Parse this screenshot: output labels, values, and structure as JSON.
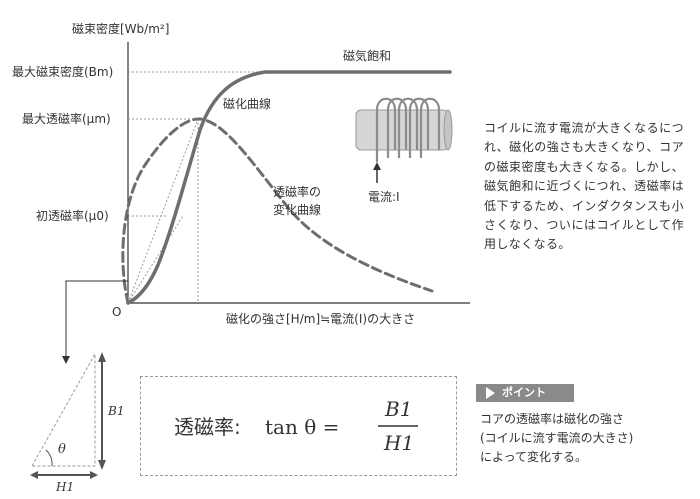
{
  "axes": {
    "y_label": "磁束密度[Wb/m²]",
    "x_label": "磁化の強さ[H/m]≒電流(I)の大きさ",
    "origin": "O"
  },
  "y_markers": {
    "bm": "最大磁束密度(Bm)",
    "mu_m": "最大透磁率(μm)",
    "mu_0": "初透磁率(μ0)"
  },
  "curve_labels": {
    "saturation": "磁気飽和",
    "magnetization": "磁化曲線",
    "permeability_line1": "透磁率の",
    "permeability_line2": "変化曲線"
  },
  "coil": {
    "current_label": "電流:I"
  },
  "triangle": {
    "theta": "θ",
    "b1": "B1",
    "h1": "H1"
  },
  "formula": {
    "lhs": "透磁率:",
    "tan": "tan θ =",
    "numerator": "B1",
    "denominator": "H1"
  },
  "description": "コイルに流す電流が大きくなるにつれ、磁化の強さも大きくなり、コアの磁束密度も大きくなる。しかし、磁気飽和に近づくにつれ、透磁率は低下するため、インダクタンスも小さくなり、ついにはコイルとして作用しなくなる。",
  "point": {
    "badge": "ポイント",
    "text_line1": "コアの透磁率は磁化の強さ",
    "text_line2": "(コイルに流す電流の大きさ)",
    "text_line3": "によって変化する。"
  },
  "colors": {
    "curve": "#6e6e6e",
    "grid_dotted": "#9a9a9a",
    "coil": "#8c8c8c",
    "text": "#333333"
  }
}
